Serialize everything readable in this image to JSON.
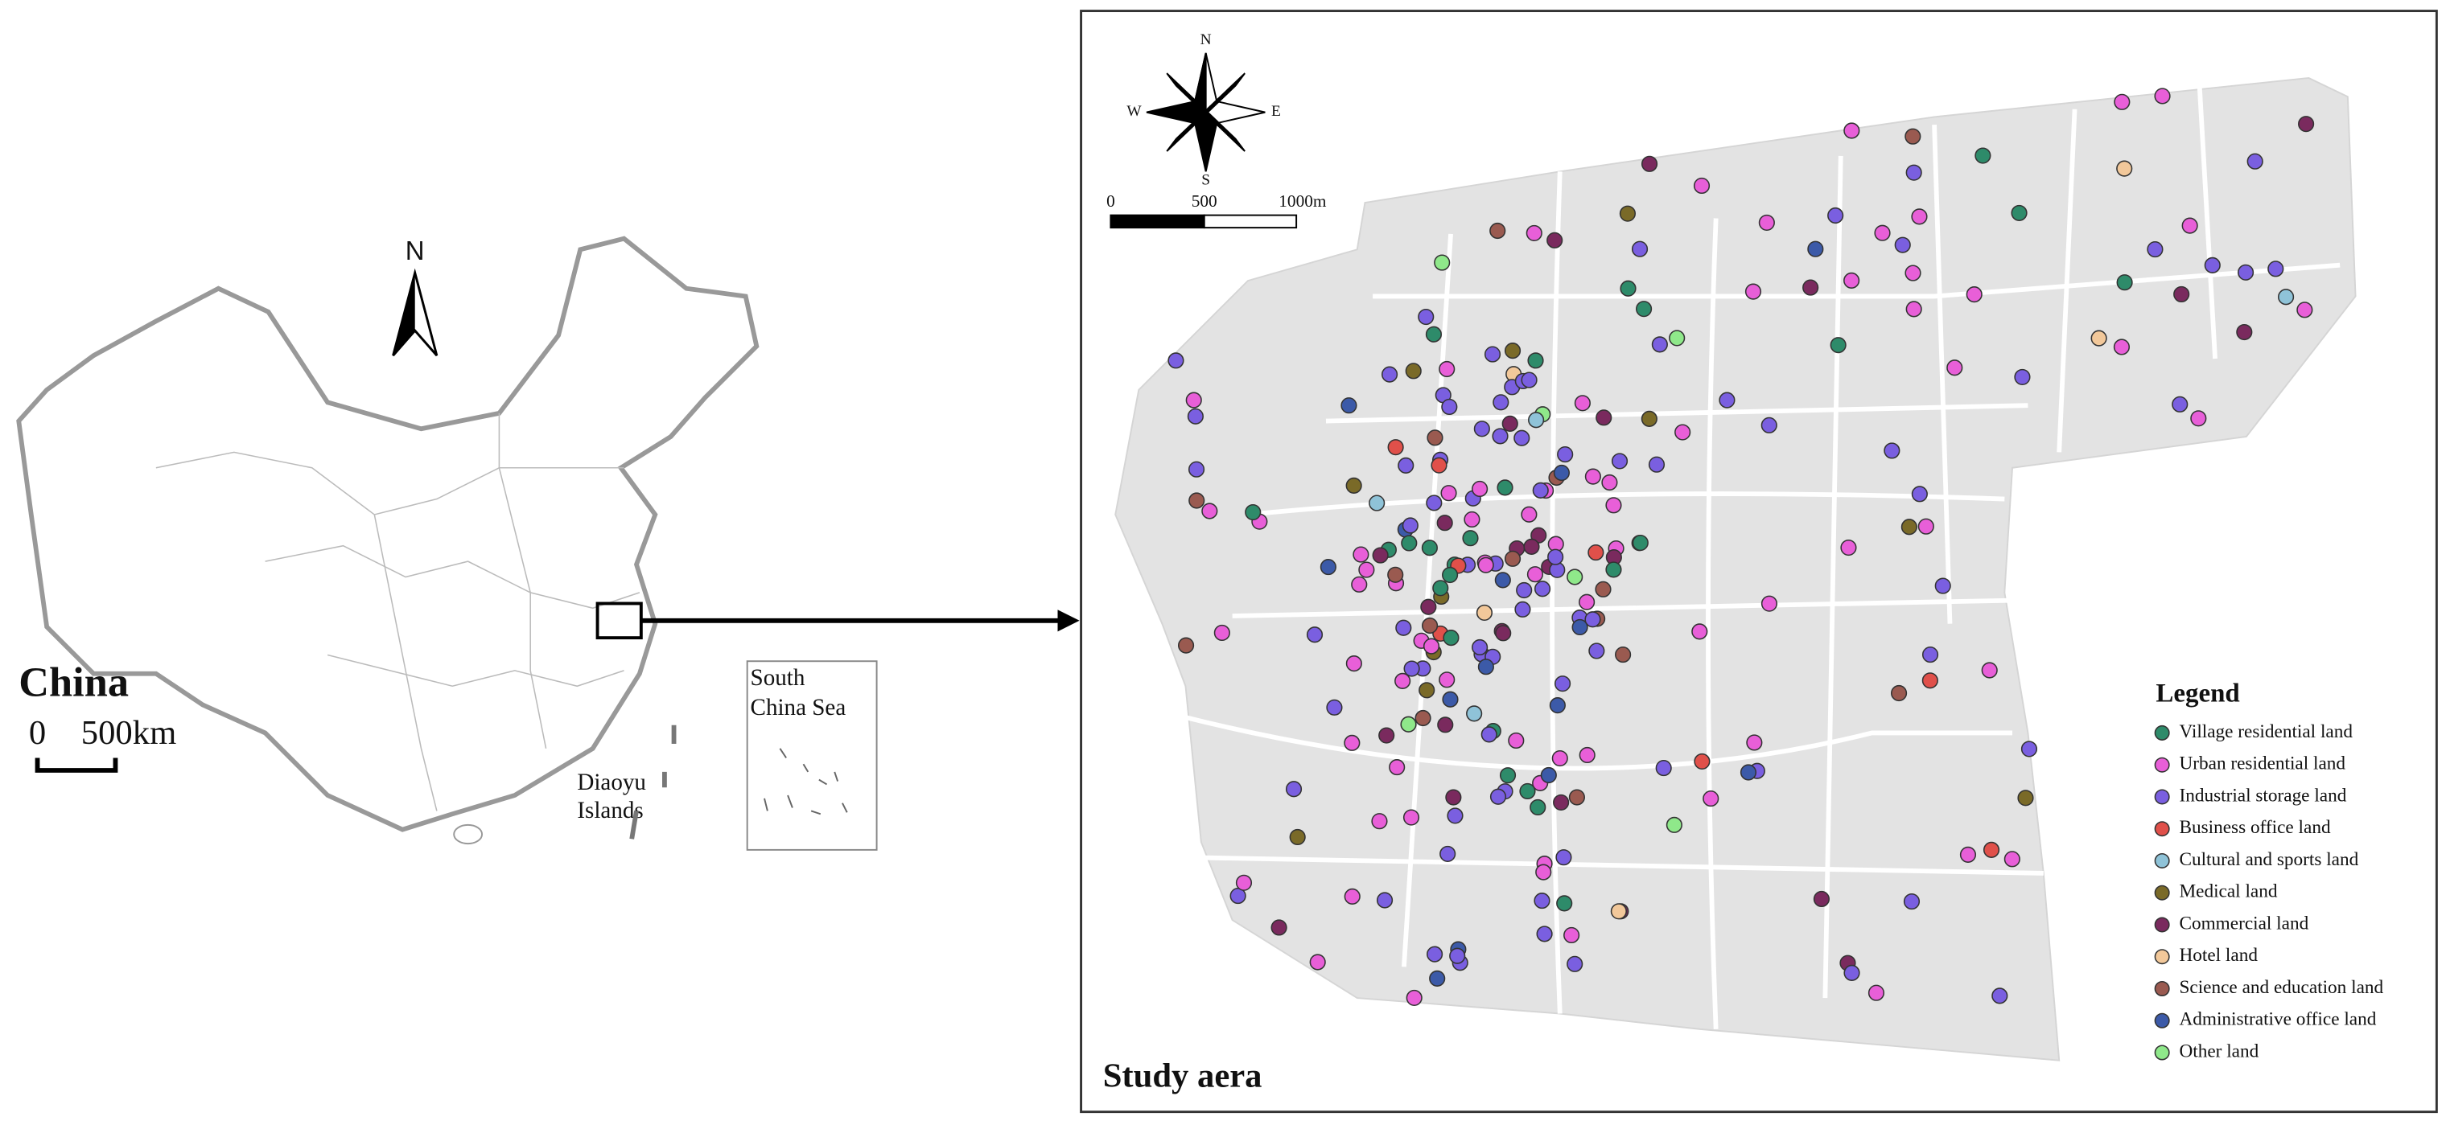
{
  "china_map": {
    "north_label": "N",
    "title": "China",
    "scale_labels": [
      "0",
      "500km"
    ],
    "inset_label": [
      "South",
      "China Sea"
    ],
    "island_label": [
      "Diaoyu",
      "Islands"
    ]
  },
  "study_map": {
    "compass_labels": {
      "north": "N",
      "west": "W",
      "east": "E",
      "south": "S"
    },
    "scale_labels": [
      "0",
      "500",
      "1000m"
    ],
    "title": "Study aera",
    "legend": {
      "title": "Legend",
      "items": [
        {
          "label": "Village residential land",
          "color": "#2e8b6a"
        },
        {
          "label": "Urban residential land",
          "color": "#e85fd8"
        },
        {
          "label": "Industrial storage land",
          "color": "#7a5fe0"
        },
        {
          "label": "Business office land",
          "color": "#e0504a"
        },
        {
          "label": "Cultural and sports land",
          "color": "#8fc3d8"
        },
        {
          "label": "Medical land",
          "color": "#7a6a28"
        },
        {
          "label": "Commercial land",
          "color": "#7a2a5e"
        },
        {
          "label": "Hotel land",
          "color": "#f2c89a"
        },
        {
          "label": "Science and education land",
          "color": "#9a5a50"
        },
        {
          "label": "Administrative office land",
          "color": "#3c5aa8"
        },
        {
          "label": "Other land",
          "color": "#8fe88a"
        }
      ]
    }
  }
}
